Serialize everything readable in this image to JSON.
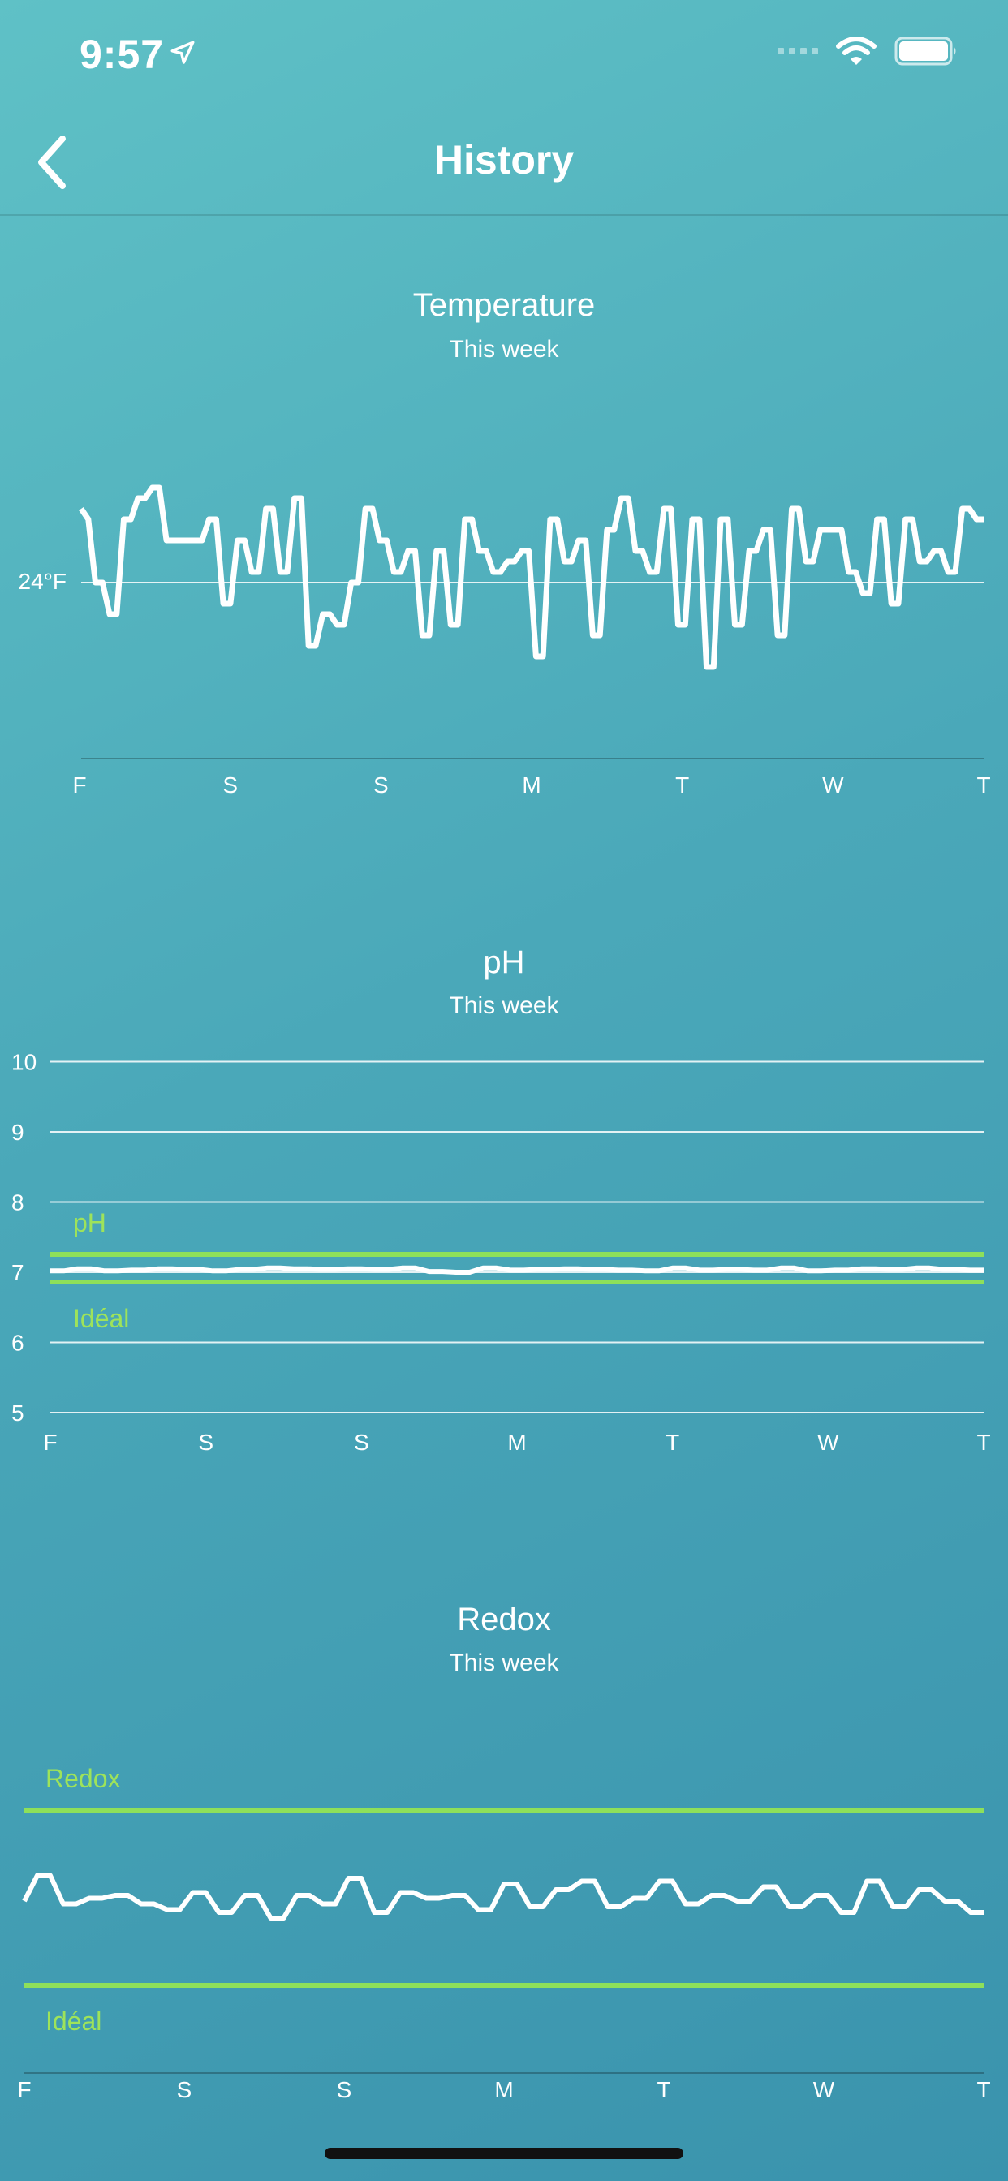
{
  "status_bar": {
    "time": "9:57"
  },
  "nav": {
    "title": "History"
  },
  "temperature": {
    "title": "Temperature",
    "subtitle": "This week",
    "ref_label": "24°F",
    "day_labels": [
      "F",
      "S",
      "S",
      "M",
      "T",
      "W",
      "T"
    ]
  },
  "ph": {
    "title": "pH",
    "subtitle": "This week",
    "ideal_top_label": "pH",
    "ideal_bottom_label": "Idéal",
    "day_labels": [
      "F",
      "S",
      "S",
      "M",
      "T",
      "W",
      "T"
    ]
  },
  "redox": {
    "title": "Redox",
    "subtitle": "This week",
    "ideal_top_label": "Redox",
    "ideal_bottom_label": "Idéal",
    "day_labels": [
      "F",
      "S",
      "S",
      "M",
      "T",
      "W",
      "T"
    ]
  },
  "colors": {
    "line": "#ffffff",
    "ideal": "#9ee35a",
    "bg_top": "#5fc1c6",
    "bg_bottom": "#3a93ad"
  },
  "chart_data": [
    {
      "type": "line",
      "title": "Temperature",
      "subtitle": "This week",
      "x_labels": [
        "F",
        "S",
        "S",
        "M",
        "T",
        "W",
        "T"
      ],
      "reference_line": {
        "label": "24°F",
        "value": 24
      },
      "ylim": [
        21.4,
        25.8
      ],
      "series": [
        {
          "values": [
            24.7,
            24.6,
            24,
            24,
            23.7,
            23.7,
            24.6,
            24.6,
            24.8,
            24.8,
            24.9,
            24.9,
            24.4,
            24.4,
            24.4,
            24.4,
            24.4,
            24.4,
            24.6,
            24.6,
            23.8,
            23.8,
            24.4,
            24.4,
            24.1,
            24.1,
            24.7,
            24.7,
            24.1,
            24.1,
            24.8,
            24.8,
            23.4,
            23.4,
            23.7,
            23.7,
            23.6,
            23.6,
            24,
            24,
            24.7,
            24.7,
            24.4,
            24.4,
            24.1,
            24.1,
            24.3,
            24.3,
            23.5,
            23.5,
            24.3,
            24.3,
            23.6,
            23.6,
            24.6,
            24.6,
            24.3,
            24.3,
            24.1,
            24.1,
            24.2,
            24.2,
            24.3,
            24.3,
            23.3,
            23.3,
            24.6,
            24.6,
            24.2,
            24.2,
            24.4,
            24.4,
            23.5,
            23.5,
            24.5,
            24.5,
            24.8,
            24.8,
            24.3,
            24.3,
            24.1,
            24.1,
            24.7,
            24.7,
            23.6,
            23.6,
            24.6,
            24.6,
            23.2,
            23.2,
            24.6,
            24.6,
            23.6,
            23.6,
            24.3,
            24.3,
            24.5,
            24.5,
            23.5,
            23.5,
            24.7,
            24.7,
            24.2,
            24.2,
            24.5,
            24.5,
            24.5,
            24.5,
            24.1,
            24.1,
            23.9,
            23.9,
            24.6,
            24.6,
            23.8,
            23.8,
            24.6,
            24.6,
            24.2,
            24.2,
            24.3,
            24.3,
            24.1,
            24.1,
            24.7,
            24.7,
            24.6,
            24.6
          ]
        }
      ]
    },
    {
      "type": "line",
      "title": "pH",
      "subtitle": "This week",
      "x_labels": [
        "F",
        "S",
        "S",
        "M",
        "T",
        "W",
        "T"
      ],
      "y_ticks": [
        10,
        9,
        8,
        7,
        6,
        5
      ],
      "ylim": [
        5,
        10
      ],
      "ideal_range": {
        "low": 6.9,
        "high": 7.3,
        "labels": [
          "pH",
          "Idéal"
        ]
      },
      "series": [
        {
          "values": [
            7.02,
            7.02,
            7.05,
            7.05,
            7.02,
            7.02,
            7.03,
            7.03,
            7.05,
            7.05,
            7.04,
            7.04,
            7.02,
            7.02,
            7.04,
            7.04,
            7.06,
            7.06,
            7.05,
            7.05,
            7.04,
            7.04,
            7.05,
            7.05,
            7.04,
            7.04,
            7.06,
            7.06,
            7.01,
            7.01,
            7.0,
            7.0,
            7.06,
            7.06,
            7.03,
            7.03,
            7.04,
            7.04,
            7.05,
            7.05,
            7.04,
            7.04,
            7.03,
            7.03,
            7.02,
            7.02,
            7.06,
            7.06,
            7.03,
            7.03,
            7.04,
            7.04,
            7.03,
            7.03,
            7.06,
            7.06,
            7.02,
            7.02,
            7.03,
            7.03,
            7.05,
            7.05,
            7.04,
            7.04,
            7.06,
            7.06,
            7.04,
            7.04,
            7.03,
            7.03
          ]
        }
      ]
    },
    {
      "type": "line",
      "title": "Redox",
      "subtitle": "This week",
      "x_labels": [
        "F",
        "S",
        "S",
        "M",
        "T",
        "W",
        "T"
      ],
      "ideal_range": {
        "labels": [
          "Redox",
          "Idéal"
        ]
      },
      "series": [
        {
          "values": [
            0.4,
            0.85,
            0.85,
            0.35,
            0.35,
            0.45,
            0.45,
            0.5,
            0.5,
            0.35,
            0.35,
            0.25,
            0.25,
            0.55,
            0.55,
            0.2,
            0.2,
            0.5,
            0.5,
            0.1,
            0.1,
            0.5,
            0.5,
            0.35,
            0.35,
            0.8,
            0.8,
            0.2,
            0.2,
            0.55,
            0.55,
            0.45,
            0.45,
            0.5,
            0.5,
            0.25,
            0.25,
            0.7,
            0.7,
            0.3,
            0.3,
            0.6,
            0.6,
            0.75,
            0.75,
            0.3,
            0.3,
            0.45,
            0.45,
            0.75,
            0.75,
            0.35,
            0.35,
            0.5,
            0.5,
            0.4,
            0.4,
            0.65,
            0.65,
            0.3,
            0.3,
            0.5,
            0.5,
            0.2,
            0.2,
            0.75,
            0.75,
            0.3,
            0.3,
            0.6,
            0.6,
            0.4,
            0.4,
            0.2,
            0.2
          ]
        }
      ]
    }
  ]
}
